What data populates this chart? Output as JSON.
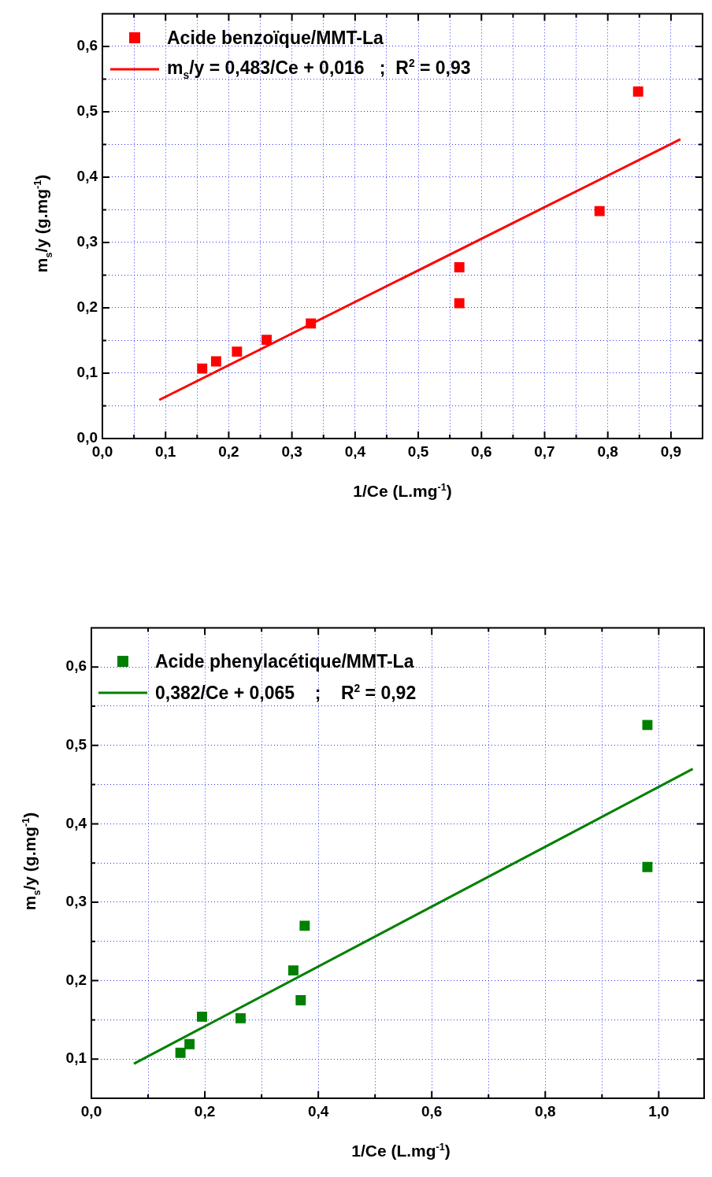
{
  "chart_data": [
    {
      "type": "scatter",
      "xlabel": "1/Ce (L.mg$^{-1}$)",
      "ylabel": "m$_{s}$/y  (g.mg$^{-1}$)",
      "xlim": [
        0,
        0.95
      ],
      "ylim": [
        0,
        0.65
      ],
      "xticks": [
        {
          "value": 0,
          "label": "0,0"
        },
        {
          "value": 0.05,
          "label": null
        },
        {
          "value": 0.1,
          "label": "0,1"
        },
        {
          "value": 0.15,
          "label": null
        },
        {
          "value": 0.2,
          "label": "0,2"
        },
        {
          "value": 0.25,
          "label": null
        },
        {
          "value": 0.3,
          "label": "0,3"
        },
        {
          "value": 0.35,
          "label": null
        },
        {
          "value": 0.4,
          "label": "0,4"
        },
        {
          "value": 0.45,
          "label": null
        },
        {
          "value": 0.5,
          "label": "0,5"
        },
        {
          "value": 0.55,
          "label": null
        },
        {
          "value": 0.6,
          "label": "0,6"
        },
        {
          "value": 0.65,
          "label": null
        },
        {
          "value": 0.7,
          "label": "0,7"
        },
        {
          "value": 0.75,
          "label": null
        },
        {
          "value": 0.8,
          "label": "0,8"
        },
        {
          "value": 0.85,
          "label": null
        },
        {
          "value": 0.9,
          "label": "0,9"
        }
      ],
      "yticks": [
        {
          "value": 0,
          "label": "0,0"
        },
        {
          "value": 0.05,
          "label": null
        },
        {
          "value": 0.1,
          "label": "0,1"
        },
        {
          "value": 0.15,
          "label": null
        },
        {
          "value": 0.2,
          "label": "0,2"
        },
        {
          "value": 0.25,
          "label": null
        },
        {
          "value": 0.3,
          "label": "0,3"
        },
        {
          "value": 0.35,
          "label": null
        },
        {
          "value": 0.4,
          "label": "0,4"
        },
        {
          "value": 0.45,
          "label": null
        },
        {
          "value": 0.5,
          "label": "0,5"
        },
        {
          "value": 0.55,
          "label": null
        },
        {
          "value": 0.6,
          "label": "0,6"
        }
      ],
      "grid": true,
      "legend": "top left",
      "marker": "square",
      "series": [
        {
          "name": "Acide benzoïque/MMT-La",
          "color": "#ff0000",
          "x": [
            0.158,
            0.18,
            0.213,
            0.26,
            0.33,
            0.565,
            0.565,
            0.787,
            0.848
          ],
          "values": [
            0.107,
            0.118,
            0.133,
            0.151,
            0.176,
            0.262,
            0.207,
            0.348,
            0.531
          ]
        },
        {
          "name": "m$_{s}$/y = 0,483/Ce + 0,016   ;  R$^{2}$ = 0,93",
          "type": "line",
          "marker": "none",
          "color": "#ff0000",
          "x": [
            0.09,
            0.915
          ],
          "values": [
            0.059,
            0.458
          ]
        }
      ]
    },
    {
      "type": "scatter",
      "xlabel": "1/Ce (L.mg$^{-1}$)",
      "ylabel": "m$_{s}$/y (g.mg$^{-1}$)",
      "xlim": [
        0,
        1.08
      ],
      "ylim": [
        0.05,
        0.65
      ],
      "xticks": [
        {
          "value": 0,
          "label": "0,0"
        },
        {
          "value": 0.1,
          "label": null
        },
        {
          "value": 0.2,
          "label": "0,2"
        },
        {
          "value": 0.3,
          "label": null
        },
        {
          "value": 0.4,
          "label": "0,4"
        },
        {
          "value": 0.5,
          "label": null
        },
        {
          "value": 0.6,
          "label": "0,6"
        },
        {
          "value": 0.7,
          "label": null
        },
        {
          "value": 0.8,
          "label": "0,8"
        },
        {
          "value": 0.9,
          "label": null
        },
        {
          "value": 1,
          "label": "1,0"
        }
      ],
      "yticks": [
        {
          "value": 0.1,
          "label": "0,1"
        },
        {
          "value": 0.15,
          "label": null
        },
        {
          "value": 0.2,
          "label": "0,2"
        },
        {
          "value": 0.25,
          "label": null
        },
        {
          "value": 0.3,
          "label": "0,3"
        },
        {
          "value": 0.35,
          "label": null
        },
        {
          "value": 0.4,
          "label": "0,4"
        },
        {
          "value": 0.45,
          "label": null
        },
        {
          "value": 0.5,
          "label": "0,5"
        },
        {
          "value": 0.55,
          "label": null
        },
        {
          "value": 0.6,
          "label": "0,6"
        }
      ],
      "grid": true,
      "legend": "top left",
      "marker": "square",
      "series": [
        {
          "name": "Acide phenylacétique/MMT-La",
          "color": "#008000",
          "x": [
            0.157,
            0.173,
            0.195,
            0.263,
            0.356,
            0.369,
            0.376,
            0.98,
            0.98
          ],
          "values": [
            0.108,
            0.119,
            0.154,
            0.152,
            0.213,
            0.175,
            0.27,
            0.526,
            0.345
          ]
        },
        {
          "name": "0,382/Ce + 0,065    ;    R$^{2}$ = 0,92",
          "type": "line",
          "marker": "none",
          "color": "#008000",
          "x": [
            0.075,
            1.06
          ],
          "values": [
            0.094,
            0.47
          ]
        }
      ]
    }
  ]
}
